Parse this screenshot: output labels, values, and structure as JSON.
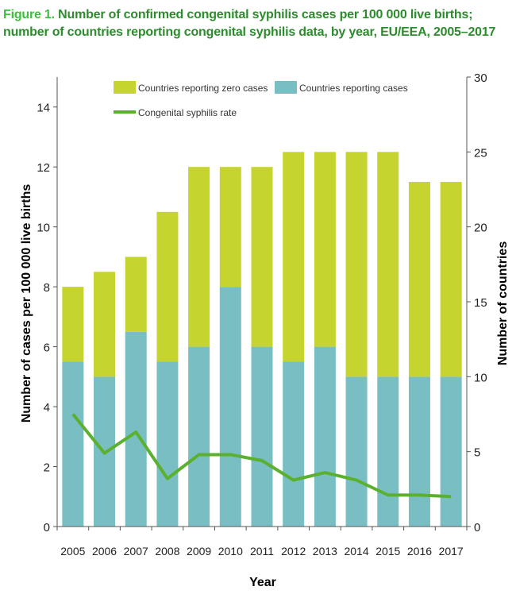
{
  "caption": {
    "label": "Figure 1.",
    "text": "Number of confirmed congenital syphilis cases per 100 000 live births; number of countries reporting congenital syphilis data, by year, EU/EEA, 2005–2017"
  },
  "colors": {
    "zero_cases": "#c5d42e",
    "reporting_cases": "#79bec2",
    "rate_line": "#5cb030",
    "axis": "#555555",
    "caption_label": "#3dbf3d",
    "caption_text": "#2e8b2e"
  },
  "chart_data": {
    "type": "bar",
    "title": "",
    "xlabel": "Year",
    "ylabel_left": "Number of cases per 100 000 live births",
    "ylabel_right": "Number of countries",
    "ylim_left": [
      0,
      15
    ],
    "ylim_right": [
      0,
      30
    ],
    "yticks_left": [
      "0",
      "2",
      "4",
      "6",
      "8",
      "10",
      "12",
      "14"
    ],
    "yticks_right": [
      "0",
      "5",
      "10",
      "15",
      "20",
      "25",
      "30"
    ],
    "categories": [
      "2005",
      "2006",
      "2007",
      "2008",
      "2009",
      "2010",
      "2011",
      "2012",
      "2013",
      "2014",
      "2015",
      "2016",
      "2017"
    ],
    "series": [
      {
        "name": "Countries reporting cases",
        "kind": "stacked-bar",
        "axis": "right",
        "values": [
          11,
          10,
          13,
          11,
          12,
          16,
          12,
          11,
          12,
          10,
          10,
          10,
          10
        ]
      },
      {
        "name": "Countries reporting zero cases",
        "kind": "stacked-bar",
        "axis": "right",
        "values": [
          5,
          7,
          5,
          10,
          12,
          8,
          12,
          14,
          13,
          15,
          15,
          13,
          13
        ]
      },
      {
        "name": "Congenital syphilis rate",
        "kind": "line",
        "axis": "left",
        "values": [
          3.75,
          2.45,
          3.15,
          1.6,
          2.4,
          2.4,
          2.2,
          1.55,
          1.8,
          1.55,
          1.05,
          1.05,
          1.0
        ]
      }
    ],
    "legend": {
      "position": "top",
      "entries": [
        "Countries reporting zero cases",
        "Countries reporting cases",
        "Congenital syphilis rate"
      ]
    }
  }
}
